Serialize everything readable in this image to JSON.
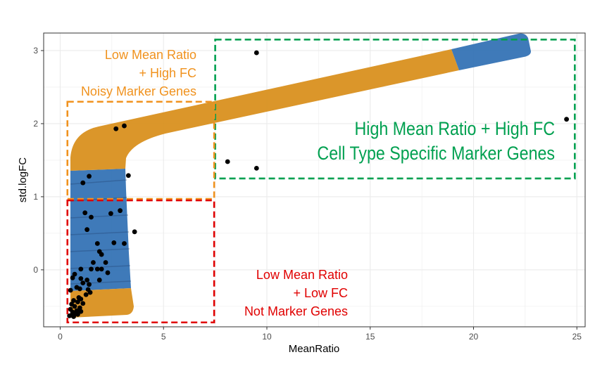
{
  "chart_data": {
    "type": "scatter",
    "title": "",
    "xlabel": "MeanRatio",
    "ylabel": "std.logFC",
    "xlim": [
      -0.8,
      25.4
    ],
    "ylim": [
      -0.78,
      3.24
    ],
    "x_ticks": [
      0,
      5,
      10,
      15,
      20,
      25
    ],
    "x_tick_labels": [
      "0",
      "5",
      "10",
      "15",
      "20",
      "25"
    ],
    "y_ticks": [
      0,
      1,
      2,
      3
    ],
    "y_tick_labels": [
      "0",
      "1",
      "2",
      "3"
    ],
    "grid": true,
    "colors": {
      "points": "#000000",
      "band_orange": "#d9901f",
      "band_blue": "#2f6fb3",
      "high_group": "#00a050",
      "noisy_group": "#f0921e",
      "low_group": "#e00000",
      "grid": "#ebebeb",
      "panel_border": "#333333"
    },
    "points": [
      {
        "x": 9.5,
        "y": 2.97
      },
      {
        "x": 24.5,
        "y": 2.06
      },
      {
        "x": 8.1,
        "y": 1.48
      },
      {
        "x": 9.5,
        "y": 1.39
      },
      {
        "x": 2.7,
        "y": 1.93
      },
      {
        "x": 3.1,
        "y": 1.97
      },
      {
        "x": 3.3,
        "y": 1.29
      },
      {
        "x": 1.4,
        "y": 1.28
      },
      {
        "x": 1.1,
        "y": 1.19
      },
      {
        "x": 1.2,
        "y": 0.78
      },
      {
        "x": 1.5,
        "y": 0.72
      },
      {
        "x": 2.45,
        "y": 0.77
      },
      {
        "x": 2.9,
        "y": 0.81
      },
      {
        "x": 3.6,
        "y": 0.52
      },
      {
        "x": 1.3,
        "y": 0.55
      },
      {
        "x": 2.6,
        "y": 0.37
      },
      {
        "x": 3.1,
        "y": 0.36
      },
      {
        "x": 1.8,
        "y": 0.36
      },
      {
        "x": 1.9,
        "y": 0.25
      },
      {
        "x": 2.0,
        "y": 0.21
      },
      {
        "x": 1.6,
        "y": 0.1
      },
      {
        "x": 2.2,
        "y": 0.1
      },
      {
        "x": 1.0,
        "y": 0.01
      },
      {
        "x": 1.5,
        "y": 0.01
      },
      {
        "x": 1.8,
        "y": 0.01
      },
      {
        "x": 2.0,
        "y": 0.01
      },
      {
        "x": 2.3,
        "y": -0.04
      },
      {
        "x": 0.7,
        "y": -0.06
      },
      {
        "x": 0.6,
        "y": -0.11
      },
      {
        "x": 1.0,
        "y": -0.12
      },
      {
        "x": 1.3,
        "y": -0.14
      },
      {
        "x": 1.9,
        "y": -0.14
      },
      {
        "x": 1.1,
        "y": -0.18
      },
      {
        "x": 1.4,
        "y": -0.2
      },
      {
        "x": 0.8,
        "y": -0.24
      },
      {
        "x": 0.95,
        "y": -0.26
      },
      {
        "x": 0.5,
        "y": -0.28
      },
      {
        "x": 1.35,
        "y": -0.27
      },
      {
        "x": 1.45,
        "y": -0.31
      },
      {
        "x": 1.25,
        "y": -0.34
      },
      {
        "x": 0.9,
        "y": -0.38
      },
      {
        "x": 1.0,
        "y": -0.4
      },
      {
        "x": 0.65,
        "y": -0.42
      },
      {
        "x": 0.85,
        "y": -0.44
      },
      {
        "x": 1.1,
        "y": -0.46
      },
      {
        "x": 0.55,
        "y": -0.47
      },
      {
        "x": 0.7,
        "y": -0.5
      },
      {
        "x": 0.95,
        "y": -0.52
      },
      {
        "x": 0.5,
        "y": -0.54
      },
      {
        "x": 0.8,
        "y": -0.56
      },
      {
        "x": 0.6,
        "y": -0.58
      },
      {
        "x": 1.0,
        "y": -0.57
      },
      {
        "x": 0.75,
        "y": -0.6
      },
      {
        "x": 0.55,
        "y": -0.62
      },
      {
        "x": 0.85,
        "y": -0.61
      },
      {
        "x": 0.65,
        "y": -0.64
      },
      {
        "x": 0.45,
        "y": -0.63
      }
    ],
    "regions": [
      {
        "name": "high-mean-ratio-high-fc",
        "x": [
          7.5,
          24.9
        ],
        "y": [
          1.25,
          3.15
        ],
        "color": "#00a050",
        "lines": [
          "High Mean Ratio + High FC",
          "Cell Type Specific Marker Genes"
        ]
      },
      {
        "name": "low-mean-ratio-high-fc",
        "x": [
          0.35,
          7.45
        ],
        "y": [
          0.97,
          2.3
        ],
        "color": "#f0921e",
        "lines": [
          "Low Mean Ratio",
          "+ High FC",
          "Noisy Marker Genes"
        ]
      },
      {
        "name": "low-mean-ratio-low-fc",
        "x": [
          0.35,
          7.45
        ],
        "y": [
          -0.72,
          0.95
        ],
        "color": "#e00000",
        "lines": [
          "Low Mean Ratio",
          "+ Low FC",
          "Not Marker Genes"
        ]
      }
    ]
  }
}
